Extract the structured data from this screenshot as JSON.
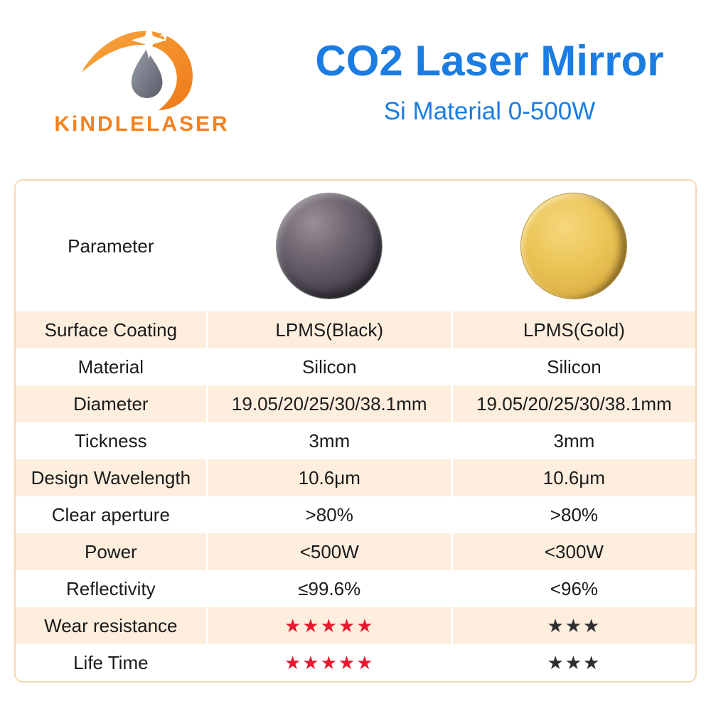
{
  "brand": {
    "name": "KiNDLELASER",
    "logo_icon": "comet-sparkle-icon"
  },
  "header": {
    "title": "CO2 Laser Mirror",
    "subtitle": "Si Material 0-500W"
  },
  "table": {
    "parameter_header": "Parameter",
    "products": [
      {
        "id": "black",
        "image": "black-mirror-disc"
      },
      {
        "id": "gold",
        "image": "gold-mirror-disc"
      }
    ],
    "rows": [
      {
        "label": "Surface Coating",
        "values": [
          "LPMS(Black)",
          "LPMS(Gold)"
        ]
      },
      {
        "label": "Material",
        "values": [
          "Silicon",
          "Silicon"
        ]
      },
      {
        "label": "Diameter",
        "values": [
          "19.05/20/25/30/38.1mm",
          "19.05/20/25/30/38.1mm"
        ]
      },
      {
        "label": "Tickness",
        "values": [
          "3mm",
          "3mm"
        ]
      },
      {
        "label": "Design Wavelength",
        "values": [
          "10.6μm",
          "10.6μm"
        ]
      },
      {
        "label": "Clear aperture",
        "values": [
          ">80%",
          ">80%"
        ]
      },
      {
        "label": "Power",
        "values": [
          "<500W",
          "<300W"
        ]
      },
      {
        "label": "Reflectivity",
        "values": [
          "≤99.6%",
          "<96%"
        ]
      },
      {
        "label": "Wear resistance",
        "stars": [
          5,
          3
        ]
      },
      {
        "label": "Life Time",
        "stars": [
          5,
          3
        ]
      }
    ],
    "star_char": "★"
  },
  "colors": {
    "title_blue": "#1b7ce2",
    "brand_orange": "#f58220",
    "row_peach": "#fdeedd",
    "table_border": "#f6d7b4",
    "star_red": "#e8192d",
    "star_dark": "#2e2e33"
  }
}
